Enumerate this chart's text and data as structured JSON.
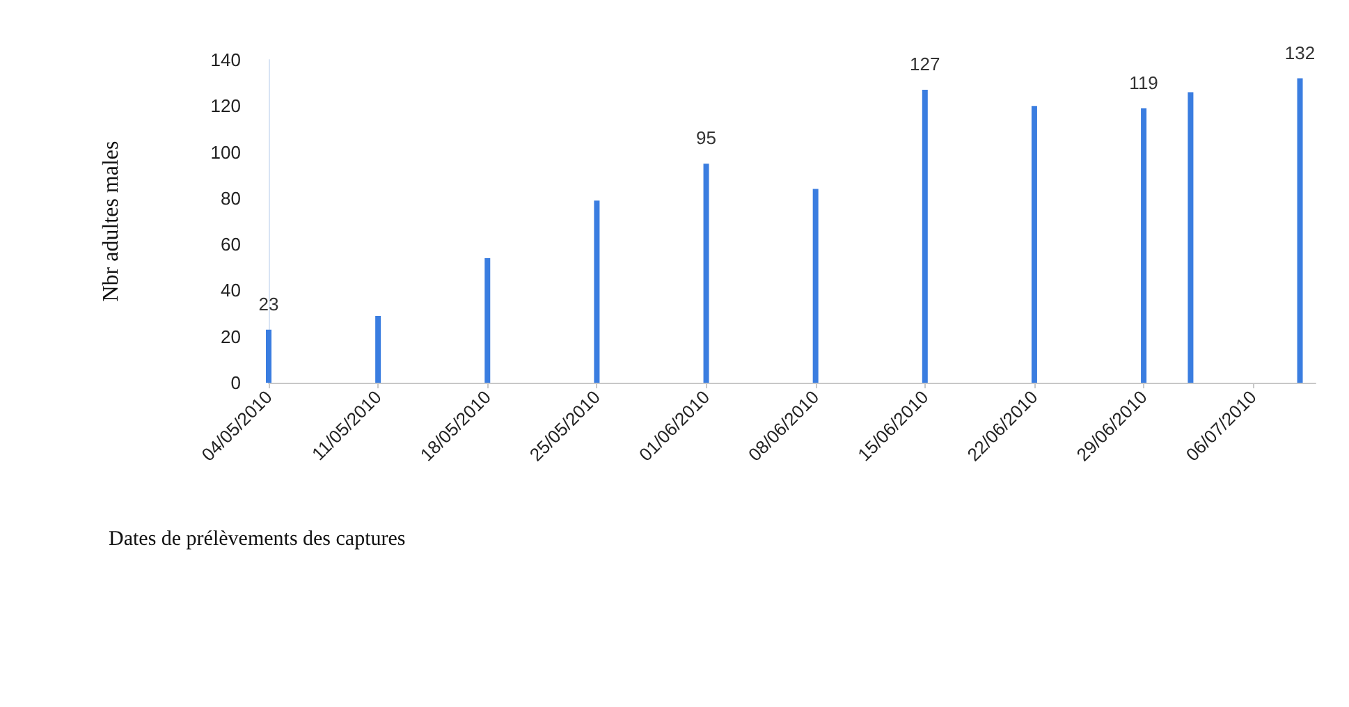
{
  "chart_data": {
    "type": "bar",
    "xlabel": "Dates de prélèvements des captures",
    "ylabel": "Nbr adultes males",
    "x": [
      "2010-05-04",
      "2010-05-11",
      "2010-05-18",
      "2010-05-25",
      "2010-06-01",
      "2010-06-08",
      "2010-06-15",
      "2010-06-22",
      "2010-06-29",
      "2010-07-02",
      "2010-07-09"
    ],
    "values": [
      23,
      29,
      54,
      79,
      95,
      84,
      127,
      120,
      119,
      126,
      132
    ],
    "value_labels": [
      "23",
      null,
      null,
      null,
      "95",
      null,
      "127",
      null,
      "119",
      null,
      "132"
    ],
    "color": "#3a7de0",
    "xlim": [
      "2010-05-04",
      "2010-07-10"
    ],
    "xticks": [
      {
        "value": "2010-05-04",
        "label": "04/05/2010"
      },
      {
        "value": "2010-05-11",
        "label": "11/05/2010"
      },
      {
        "value": "2010-05-18",
        "label": "18/05/2010"
      },
      {
        "value": "2010-05-25",
        "label": "25/05/2010"
      },
      {
        "value": "2010-06-01",
        "label": "01/06/2010"
      },
      {
        "value": "2010-06-08",
        "label": "08/06/2010"
      },
      {
        "value": "2010-06-15",
        "label": "15/06/2010"
      },
      {
        "value": "2010-06-22",
        "label": "22/06/2010"
      },
      {
        "value": "2010-06-29",
        "label": "29/06/2010"
      },
      {
        "value": "2010-07-06",
        "label": "06/07/2010"
      }
    ],
    "ylim": [
      0,
      140
    ],
    "yticks": [
      0,
      20,
      40,
      60,
      80,
      100,
      120,
      140
    ],
    "grid": false
  }
}
